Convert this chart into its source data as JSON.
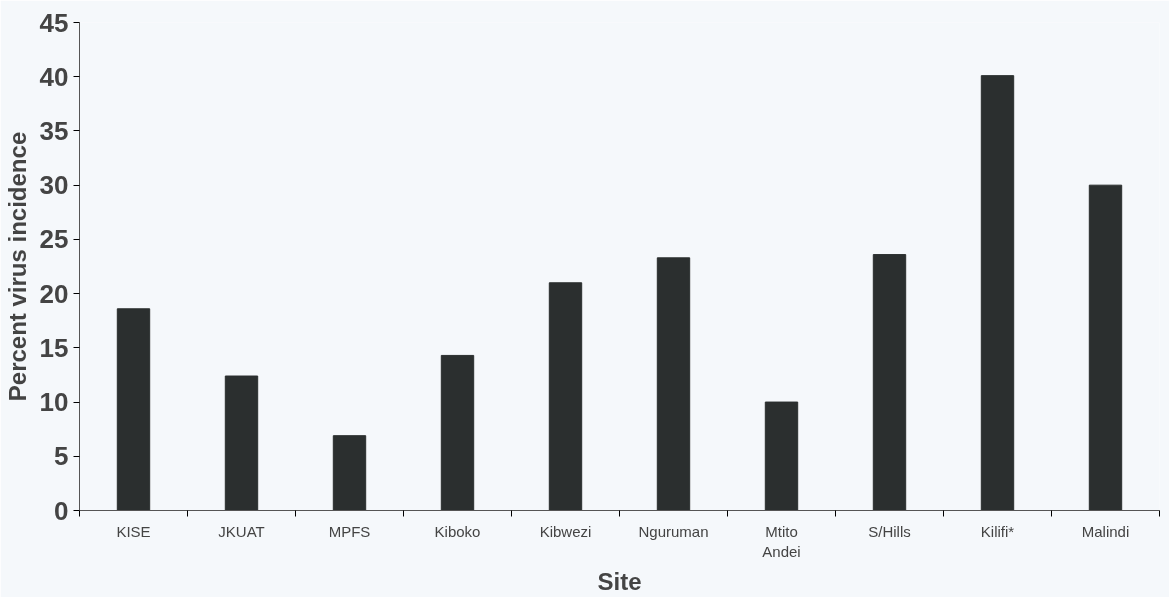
{
  "chart_data": {
    "type": "bar",
    "xlabel": "Site",
    "ylabel": "Percent virus incidence",
    "categories": [
      "KISE",
      "JKUAT",
      "MPFS",
      "Kiboko",
      "Kibwezi",
      "Nguruman",
      "Mtito\nAndei",
      "S/Hills",
      "Kilifi*",
      "Malindi"
    ],
    "values": [
      18.6,
      12.4,
      6.9,
      14.3,
      21.0,
      23.3,
      10.0,
      23.6,
      40.1,
      30.0
    ],
    "color": "#2b2f2f",
    "ylim": [
      0,
      45
    ],
    "yticks": [
      0,
      5,
      10,
      15,
      20,
      25,
      30,
      35,
      40,
      45
    ],
    "grid": false
  }
}
